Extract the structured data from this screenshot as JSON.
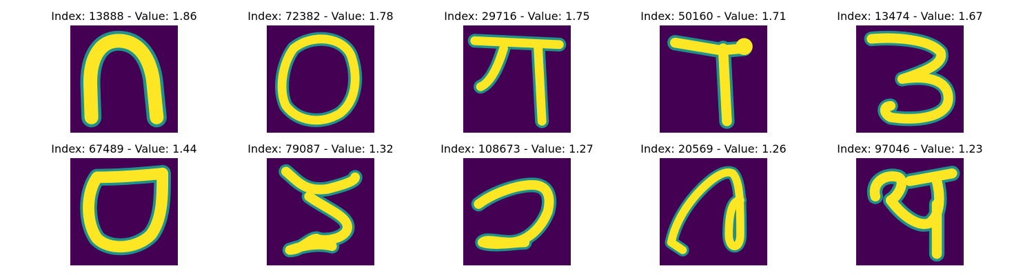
{
  "colormap": {
    "background": "#440154",
    "edge": "#21918c",
    "mid": "#5ec962",
    "foreground": "#fde725"
  },
  "grid": [
    {
      "title": "Index: 13888 - Value: 1.86",
      "glyph": "glyph-n-arch"
    },
    {
      "title": "Index: 72382 - Value: 1.78",
      "glyph": "glyph-o-ring"
    },
    {
      "title": "Index: 29716 - Value: 1.75",
      "glyph": "glyph-pi-like"
    },
    {
      "title": "Index: 50160 - Value: 1.71",
      "glyph": "glyph-t-like"
    },
    {
      "title": "Index: 13474 - Value: 1.67",
      "glyph": "glyph-three"
    },
    {
      "title": "Index: 67489 - Value: 1.44",
      "glyph": "glyph-o-flag"
    },
    {
      "title": "Index: 79087 - Value: 1.32",
      "glyph": "glyph-five-like"
    },
    {
      "title": "Index: 108673 - Value: 1.27",
      "glyph": "glyph-hook"
    },
    {
      "title": "Index: 20569 - Value: 1.26",
      "glyph": "glyph-loop-a"
    },
    {
      "title": "Index: 97046 - Value: 1.23",
      "glyph": "glyph-swirl"
    }
  ]
}
